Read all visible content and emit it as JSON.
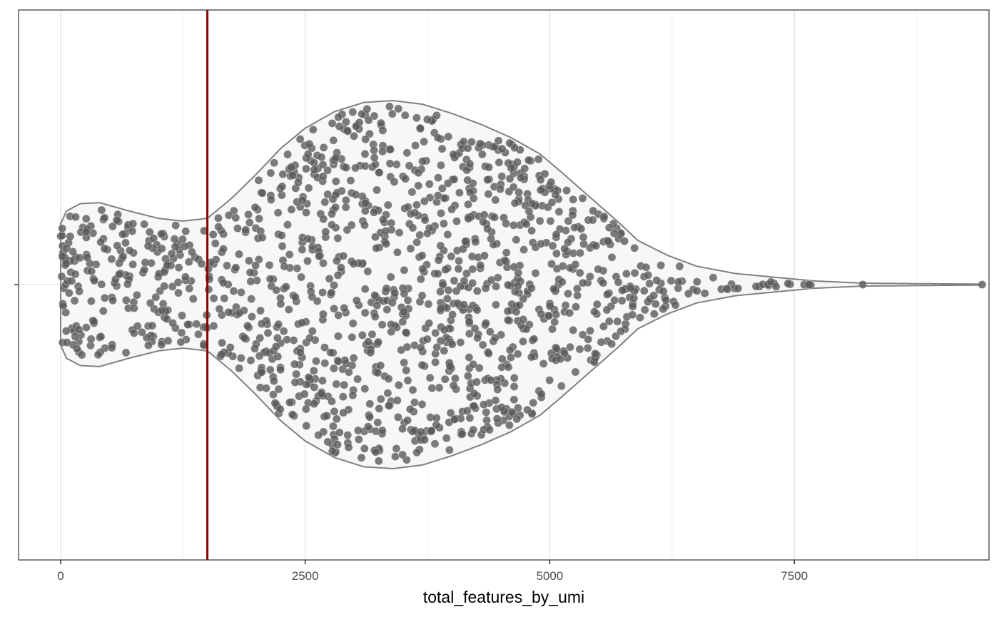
{
  "chart_data": {
    "type": "violin",
    "title": "",
    "xlabel": "total_features_by_umi",
    "ylabel": "",
    "xlim": [
      -430,
      9490
    ],
    "x_ticks": [
      {
        "value": 0,
        "label": "0"
      },
      {
        "value": 2500,
        "label": "2500"
      },
      {
        "value": 5000,
        "label": "5000"
      },
      {
        "value": 7500,
        "label": "7500"
      }
    ],
    "x_minor_gridlines": [
      1250,
      3750,
      6250,
      8750
    ],
    "grid": true,
    "threshold_line": {
      "value": 1500,
      "color": "#8b0000"
    },
    "violin": {
      "fill": "#f7f7f7",
      "outline": "#808080",
      "max_halfwidth": 1.0,
      "density_profile": [
        [
          0,
          0.33
        ],
        [
          60,
          0.4
        ],
        [
          200,
          0.44
        ],
        [
          400,
          0.445
        ],
        [
          700,
          0.4
        ],
        [
          1000,
          0.36
        ],
        [
          1250,
          0.345
        ],
        [
          1500,
          0.36
        ],
        [
          1750,
          0.47
        ],
        [
          2000,
          0.6
        ],
        [
          2250,
          0.74
        ],
        [
          2500,
          0.85
        ],
        [
          2800,
          0.94
        ],
        [
          3100,
          0.99
        ],
        [
          3400,
          1.0
        ],
        [
          3700,
          0.98
        ],
        [
          4000,
          0.93
        ],
        [
          4300,
          0.87
        ],
        [
          4600,
          0.8
        ],
        [
          4900,
          0.71
        ],
        [
          5100,
          0.62
        ],
        [
          5400,
          0.48
        ],
        [
          5700,
          0.34
        ],
        [
          5900,
          0.24
        ],
        [
          6200,
          0.16
        ],
        [
          6500,
          0.1
        ],
        [
          6900,
          0.06
        ],
        [
          7300,
          0.04
        ],
        [
          7700,
          0.02
        ],
        [
          8200,
          0.008
        ],
        [
          9000,
          0.004
        ],
        [
          9400,
          0.003
        ]
      ]
    },
    "points": {
      "n": 1400,
      "color": "#5a5a5a",
      "opacity": 0.8,
      "description_range": [
        0,
        9420
      ],
      "outliers": [
        7600,
        7650,
        8200,
        9420
      ]
    }
  }
}
